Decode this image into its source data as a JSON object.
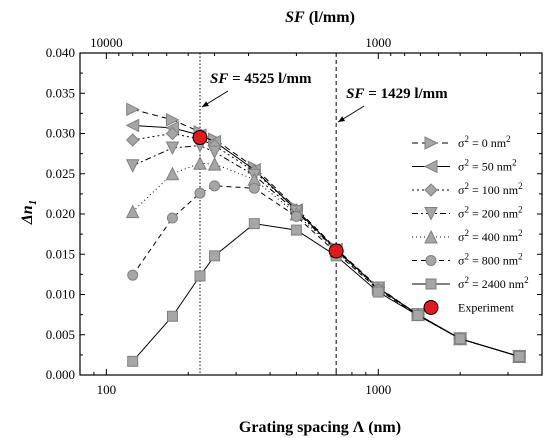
{
  "chart_data": {
    "type": "line",
    "xlabel_var": "Grating spacing",
    "xlabel_sym": "Λ",
    "xlabel_unit": "(nm)",
    "ylabel_var": "Δn",
    "ylabel_sub": "1",
    "x2label_var": "SF",
    "x2label_unit": "(l/mm)",
    "x_scale": "log",
    "xlim": [
      80,
      4000
    ],
    "ylim": [
      0,
      0.04
    ],
    "x_ticks": [
      100,
      1000
    ],
    "x_tick_labels": [
      "100",
      "1000"
    ],
    "y_ticks": [
      0,
      0.005,
      0.01,
      0.015,
      0.02,
      0.025,
      0.03,
      0.035,
      0.04
    ],
    "y_tick_labels": [
      "0.000",
      "0.005",
      "0.010",
      "0.015",
      "0.020",
      "0.025",
      "0.030",
      "0.035",
      "0.040"
    ],
    "x2_ticks": [
      10000,
      1000
    ],
    "x2_tick_labels": [
      "10000",
      "1000"
    ],
    "x": [
      125,
      175,
      221,
      250,
      350,
      500,
      700,
      1000,
      1400,
      2000,
      3300
    ],
    "series": [
      {
        "name": "σ² = 0 nm²",
        "sup_label": "σ",
        "sup_mid": " = 0 nm",
        "marker": "triangle-right",
        "dash": "6,4",
        "values": [
          0.033,
          0.0317,
          0.0302,
          0.0293,
          0.0258,
          0.0207,
          0.0157,
          0.0109,
          0.0075,
          0.0045,
          0.0023
        ]
      },
      {
        "name": "σ² = 50 nm²",
        "sup_label": "σ",
        "sup_mid": " = 50 nm",
        "marker": "triangle-left",
        "dash": "",
        "values": [
          0.031,
          0.0307,
          0.0298,
          0.029,
          0.0255,
          0.0205,
          0.0156,
          0.0108,
          0.0075,
          0.0045,
          0.0023
        ]
      },
      {
        "name": "σ² = 100 nm²",
        "sup_label": "σ",
        "sup_mid": " = 100 nm",
        "marker": "diamond",
        "dash": "2,3",
        "values": [
          0.0292,
          0.03,
          0.0293,
          0.0285,
          0.0253,
          0.0205,
          0.0155,
          0.0108,
          0.0075,
          0.0045,
          0.0023
        ]
      },
      {
        "name": "σ² = 200 nm²",
        "sup_label": "σ",
        "sup_mid": " = 200 nm",
        "marker": "triangle-down",
        "dash": "6,3,2,3",
        "values": [
          0.026,
          0.0282,
          0.0285,
          0.0277,
          0.0248,
          0.0203,
          0.0155,
          0.0108,
          0.0075,
          0.0045,
          0.0023
        ]
      },
      {
        "name": "σ² = 400 nm²",
        "sup_label": "σ",
        "sup_mid": " = 400 nm",
        "marker": "triangle-up",
        "dash": "1,3",
        "values": [
          0.0203,
          0.025,
          0.0263,
          0.0262,
          0.0243,
          0.02,
          0.0154,
          0.0107,
          0.0075,
          0.0045,
          0.0023
        ]
      },
      {
        "name": "σ² = 800 nm²",
        "sup_label": "σ",
        "sup_mid": " = 800 nm",
        "marker": "circle",
        "dash": "5,4",
        "values": [
          0.0124,
          0.0195,
          0.0226,
          0.0235,
          0.0232,
          0.0197,
          0.0152,
          0.0106,
          0.0074,
          0.0045,
          0.0023
        ]
      },
      {
        "name": "σ² = 2400 nm²",
        "sup_label": "σ",
        "sup_mid": " = 2400 nm",
        "marker": "square",
        "dash": "",
        "values": [
          0.0017,
          0.0073,
          0.0123,
          0.0148,
          0.0188,
          0.018,
          0.0148,
          0.0103,
          0.0074,
          0.0045,
          0.0023
        ]
      }
    ],
    "experiment": {
      "name": "Experiment",
      "x": [
        221,
        700
      ],
      "values": [
        0.0295,
        0.0154
      ],
      "color": "#e31a1c"
    },
    "vlines": [
      {
        "x": 221,
        "style": "dotted",
        "label_var": "SF",
        "label_rest": " = 4525 l/mm"
      },
      {
        "x": 700,
        "style": "dashed",
        "label_var": "SF",
        "label_rest": " = 1429 l/mm"
      }
    ],
    "marker_fill": "#a6a6a6",
    "marker_stroke": "#808080"
  }
}
